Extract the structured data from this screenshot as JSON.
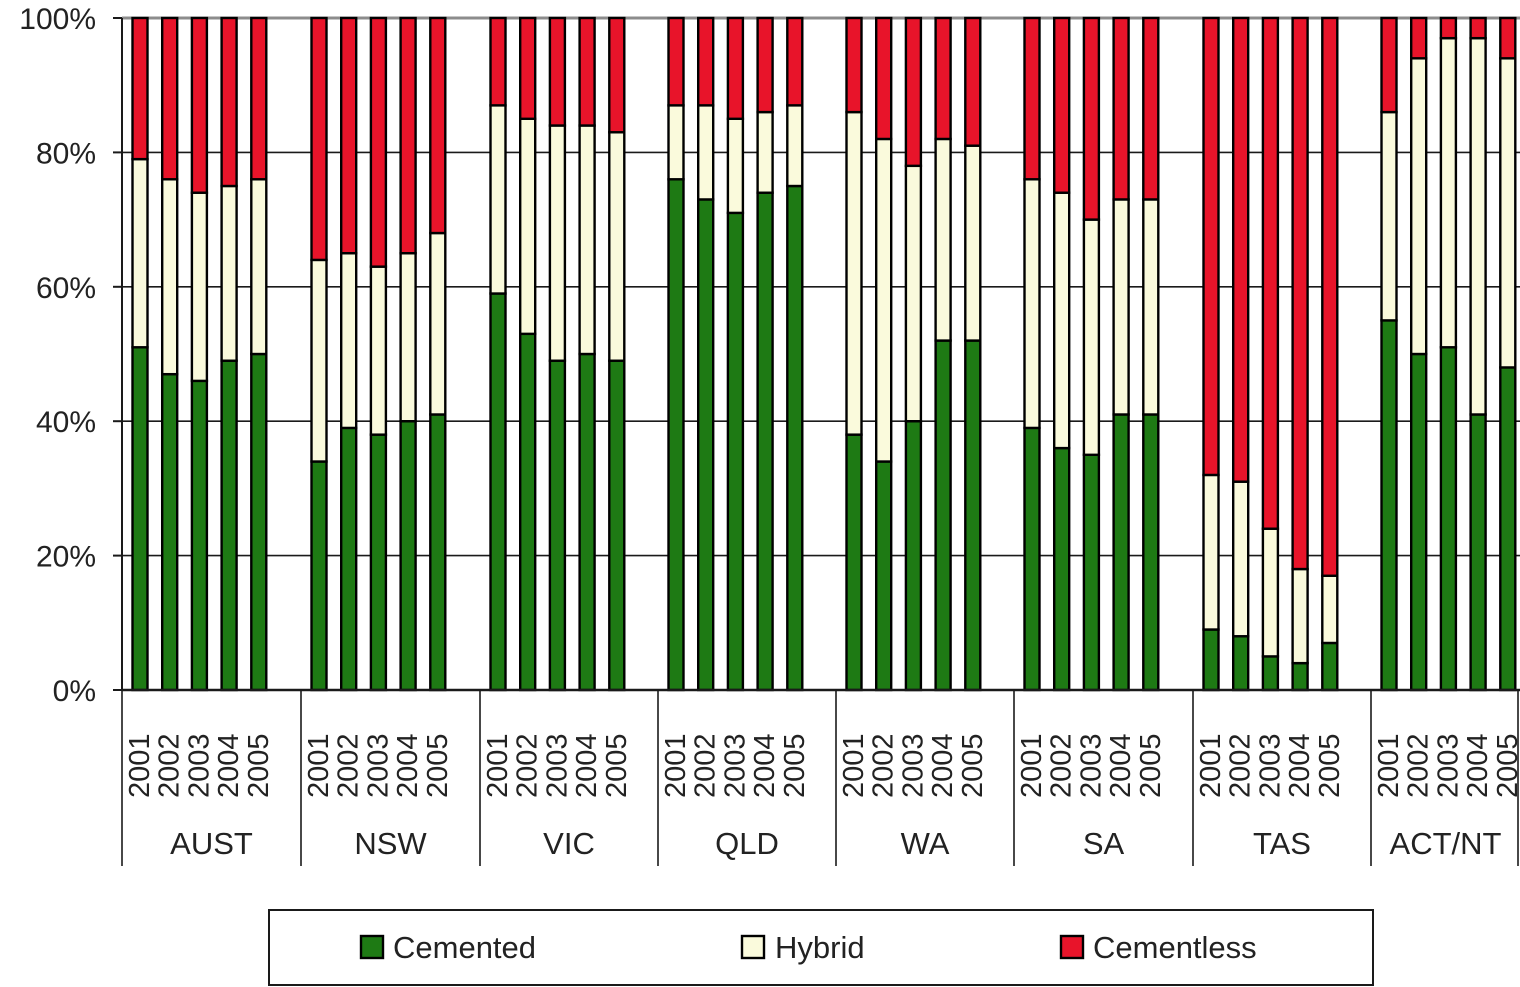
{
  "chart_data": {
    "type": "bar",
    "stacked": true,
    "percent_stacked": true,
    "title": "",
    "xlabel": "",
    "ylabel": "",
    "ylim": [
      0,
      100
    ],
    "yticks": [
      "0%",
      "20%",
      "40%",
      "60%",
      "80%",
      "100%"
    ],
    "grid": true,
    "legend_position": "bottom",
    "groups": [
      {
        "label": "AUST",
        "years": [
          "2001",
          "2002",
          "2003",
          "2004",
          "2005"
        ],
        "cemented": [
          51,
          47,
          46,
          49,
          50
        ],
        "hybrid": [
          28,
          29,
          28,
          26,
          26
        ]
      },
      {
        "label": "NSW",
        "years": [
          "2001",
          "2002",
          "2003",
          "2004",
          "2005"
        ],
        "cemented": [
          34,
          39,
          38,
          40,
          41
        ],
        "hybrid": [
          30,
          26,
          25,
          25,
          27
        ]
      },
      {
        "label": "VIC",
        "years": [
          "2001",
          "2002",
          "2003",
          "2004",
          "2005"
        ],
        "cemented": [
          59,
          53,
          49,
          50,
          49
        ],
        "hybrid": [
          28,
          32,
          35,
          34,
          34
        ]
      },
      {
        "label": "QLD",
        "years": [
          "2001",
          "2002",
          "2003",
          "2004",
          "2005"
        ],
        "cemented": [
          76,
          73,
          71,
          74,
          75
        ],
        "hybrid": [
          11,
          14,
          14,
          12,
          12
        ]
      },
      {
        "label": "WA",
        "years": [
          "2001",
          "2002",
          "2003",
          "2004",
          "2005"
        ],
        "cemented": [
          38,
          34,
          40,
          52,
          52
        ],
        "hybrid": [
          48,
          48,
          38,
          30,
          29
        ]
      },
      {
        "label": "SA",
        "years": [
          "2001",
          "2002",
          "2003",
          "2004",
          "2005"
        ],
        "cemented": [
          39,
          36,
          35,
          41,
          41
        ],
        "hybrid": [
          37,
          38,
          35,
          32,
          32
        ]
      },
      {
        "label": "TAS",
        "years": [
          "2001",
          "2002",
          "2003",
          "2004",
          "2005"
        ],
        "cemented": [
          9,
          8,
          5,
          4,
          7
        ],
        "hybrid": [
          23,
          23,
          19,
          14,
          10
        ]
      },
      {
        "label": "ACT/NT",
        "years": [
          "2001",
          "2002",
          "2003",
          "2004",
          "2005"
        ],
        "cemented": [
          55,
          50,
          51,
          41,
          48
        ],
        "hybrid": [
          31,
          44,
          46,
          56,
          46
        ]
      }
    ],
    "series": [
      {
        "name": "Cemented",
        "color": "#1e7a14"
      },
      {
        "name": "Hybrid",
        "color": "#fafadc"
      },
      {
        "name": "Cementless",
        "color": "#e8142a"
      }
    ]
  }
}
